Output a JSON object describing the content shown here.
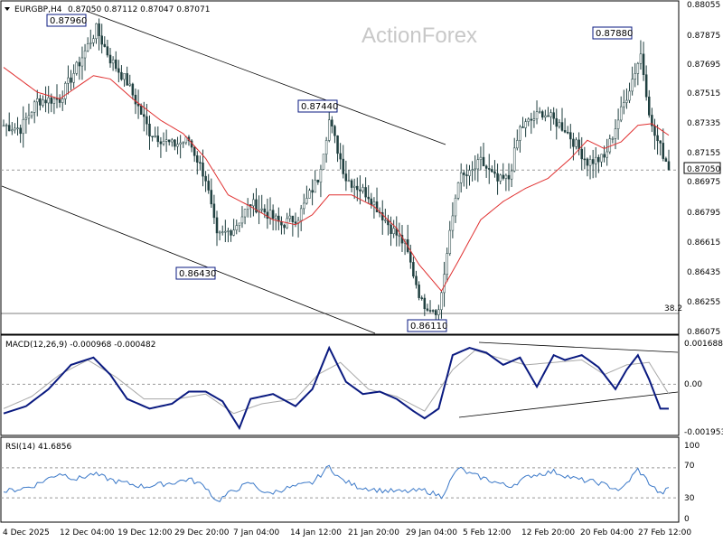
{
  "header": {
    "symbol": "EURGBP,H4",
    "ohlc": "0.87050 0.87112 0.87047 0.87071",
    "watermark": "ActionForex"
  },
  "colors": {
    "candles": "#1f3f3f",
    "ma": "#e03030",
    "macd": "#0a1a80",
    "signal": "#a8a8a8",
    "rsi": "#3a78c8",
    "grid": "#999999",
    "frame": "#000000"
  },
  "price_axis": {
    "ticks": [
      "0.88055",
      "0.87875",
      "0.87695",
      "0.87515",
      "0.87335",
      "0.87155",
      "0.86975",
      "0.86795",
      "0.86615",
      "0.86435",
      "0.86255",
      "0.86075"
    ],
    "current": "0.87050"
  },
  "annotations": {
    "high1": "0.87960",
    "high2": "0.87440",
    "high3": "0.87880",
    "low1": "0.86430",
    "low2": "0.86110",
    "fib": "38.2"
  },
  "macd_panel": {
    "label": "MACD(12,26,9) -0.000968 -0.000482",
    "ticks": [
      "0.001688",
      "0.00",
      "-0.001953"
    ]
  },
  "rsi_panel": {
    "label": "RSI(14) 41.6856",
    "ticks": [
      "100",
      "70",
      "30",
      "0"
    ]
  },
  "time_axis": [
    "4 Dec 2025",
    "12 Dec 04:00",
    "19 Dec 12:00",
    "29 Dec 20:00",
    "7 Jan 04:00",
    "14 Jan 12:00",
    "21 Jan 20:00",
    "29 Jan 04:00",
    "5 Feb 12:00",
    "12 Feb 20:00",
    "20 Feb 04:00",
    "27 Feb 12:00"
  ],
  "chart_data": [
    {
      "type": "candlestick",
      "title": "EURGBP,H4",
      "timeframe": "H4",
      "ylim": [
        0.86075,
        0.88055
      ],
      "close_anchors": {
        "x": [
          0,
          6,
          12,
          20,
          27,
          33,
          38,
          44,
          52,
          60,
          66,
          72,
          76,
          82,
          88,
          93,
          99,
          105,
          112,
          116,
          122,
          130,
          138,
          143,
          149,
          155,
          162,
          166,
          170,
          176,
          180,
          184,
          192,
          200,
          208,
          214,
          222,
          227,
          231,
          237
        ],
        "y": [
          0.8732,
          0.873,
          0.8747,
          0.8748,
          0.877,
          0.879,
          0.8772,
          0.8758,
          0.8728,
          0.872,
          0.8723,
          0.87,
          0.8664,
          0.867,
          0.8685,
          0.868,
          0.8672,
          0.8677,
          0.87,
          0.8735,
          0.87,
          0.869,
          0.867,
          0.866,
          0.8625,
          0.862,
          0.87,
          0.8702,
          0.871,
          0.8698,
          0.87,
          0.873,
          0.874,
          0.873,
          0.871,
          0.8712,
          0.875,
          0.8775,
          0.873,
          0.8707
        ]
      },
      "ma_anchors": {
        "x": [
          0,
          12,
          20,
          26,
          32,
          38,
          46,
          56,
          64,
          72,
          80,
          88,
          96,
          104,
          110,
          116,
          124,
          132,
          140,
          148,
          156,
          162,
          170,
          178,
          186,
          194,
          202,
          208,
          214,
          220,
          226,
          231,
          237
        ],
        "y": [
          0.8767,
          0.8752,
          0.8748,
          0.8755,
          0.8762,
          0.876,
          0.8748,
          0.8735,
          0.8727,
          0.8712,
          0.869,
          0.8683,
          0.8675,
          0.8672,
          0.8678,
          0.869,
          0.869,
          0.8683,
          0.867,
          0.8648,
          0.8632,
          0.865,
          0.8675,
          0.8686,
          0.8694,
          0.87,
          0.8712,
          0.8723,
          0.8718,
          0.8722,
          0.8732,
          0.8733,
          0.8726
        ]
      }
    },
    {
      "type": "line",
      "title": "MACD(12,26,9)",
      "ylim": [
        -0.001953,
        0.001688
      ],
      "macd_anchors": {
        "x": [
          0,
          8,
          16,
          24,
          32,
          38,
          44,
          52,
          60,
          66,
          72,
          78,
          84,
          88,
          96,
          104,
          110,
          116,
          122,
          128,
          134,
          140,
          146,
          150,
          155,
          160,
          166,
          172,
          178,
          184,
          190,
          196,
          200,
          206,
          212,
          218,
          222,
          226,
          230,
          234,
          237
        ],
        "y": [
          -0.0012,
          -0.0009,
          -0.0002,
          0.0008,
          0.0011,
          0.0004,
          -0.0006,
          -0.001,
          -0.0008,
          -0.0003,
          -0.0003,
          -0.0007,
          -0.0018,
          -0.0006,
          -0.0004,
          -0.0009,
          -0.0002,
          0.0015,
          0.0001,
          -0.0004,
          -0.0003,
          -0.0006,
          -0.0011,
          -0.0014,
          -0.001,
          0.0012,
          0.0015,
          0.0013,
          0.0008,
          0.0011,
          -0.0001,
          0.0012,
          0.001,
          0.0012,
          0.0007,
          -0.0002,
          0.0006,
          0.0012,
          0.0002,
          -0.001,
          -0.001
        ]
      },
      "signal_anchors": {
        "x": [
          0,
          10,
          20,
          30,
          40,
          50,
          62,
          72,
          82,
          92,
          104,
          112,
          120,
          130,
          140,
          150,
          160,
          168,
          176,
          186,
          196,
          206,
          214,
          222,
          230,
          237
        ],
        "y": [
          -0.001,
          -0.0005,
          0.0004,
          0.001,
          0.0003,
          -0.0006,
          -0.0006,
          -0.0004,
          -0.0012,
          -0.0008,
          -0.0006,
          0.0004,
          0.0009,
          -0.0002,
          -0.0005,
          -0.0011,
          0.0006,
          0.0014,
          0.0011,
          0.0008,
          0.0009,
          0.001,
          0.0004,
          0.0008,
          0.0009,
          -0.0004
        ]
      }
    },
    {
      "type": "line",
      "title": "RSI(14)",
      "ylim": [
        0,
        100
      ],
      "rsi_anchors": {
        "x": [
          0,
          10,
          20,
          26,
          32,
          40,
          50,
          60,
          66,
          72,
          76,
          82,
          88,
          94,
          100,
          110,
          116,
          120,
          126,
          134,
          142,
          150,
          156,
          162,
          166,
          172,
          180,
          188,
          196,
          204,
          212,
          220,
          226,
          230,
          234,
          237
        ],
        "y": [
          38,
          45,
          63,
          55,
          62,
          52,
          45,
          50,
          55,
          45,
          25,
          40,
          50,
          35,
          42,
          50,
          72,
          55,
          45,
          40,
          38,
          40,
          32,
          70,
          62,
          55,
          45,
          60,
          65,
          55,
          50,
          40,
          68,
          50,
          35,
          42
        ]
      }
    }
  ]
}
